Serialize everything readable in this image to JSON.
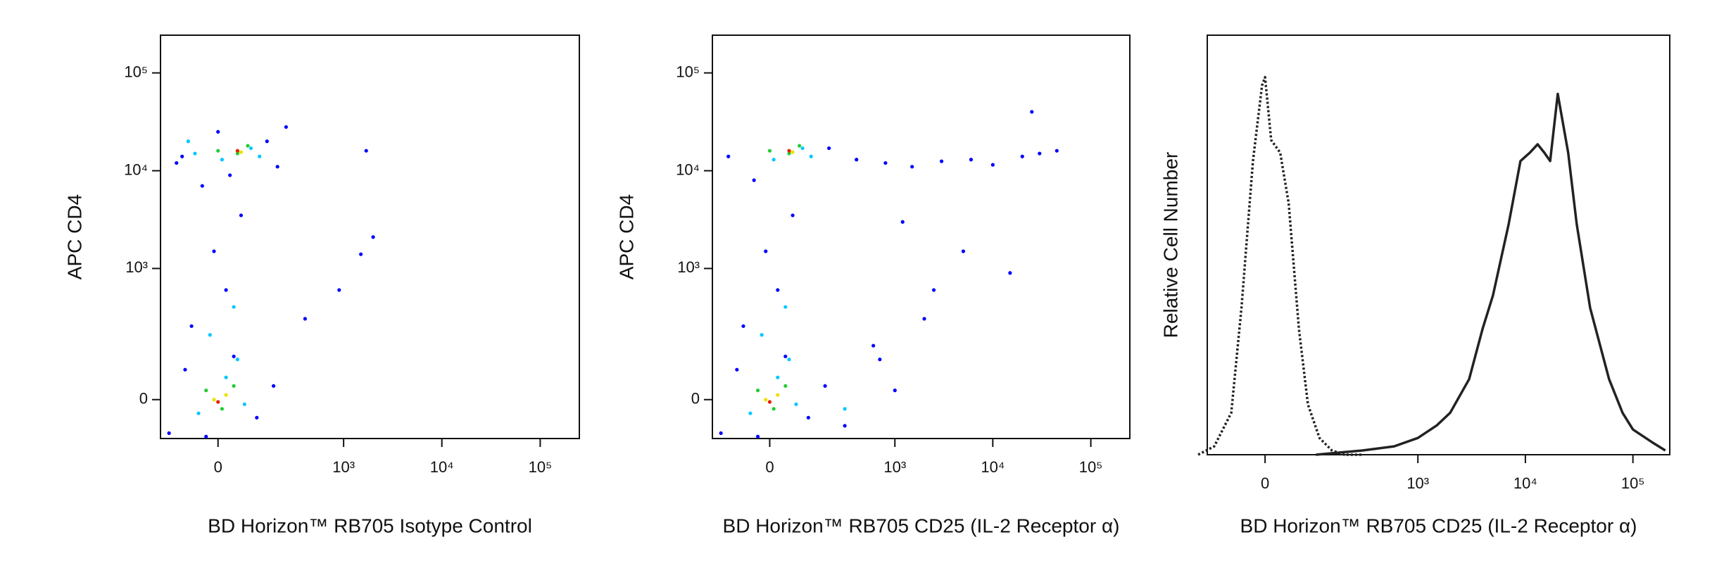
{
  "chart_data": [
    {
      "type": "scatter",
      "x_label": "BD Horizon™ RB705 Isotype Control",
      "y_label": "APC CD4",
      "scale": "biexponential",
      "xlim": [
        -190,
        250000
      ],
      "ylim": [
        -96,
        243000
      ],
      "xticks": [
        {
          "value": 0,
          "label": "0"
        },
        {
          "value": 1000,
          "label": "10³"
        },
        {
          "value": 10000,
          "label": "10⁴"
        },
        {
          "value": 100000,
          "label": "10⁵"
        }
      ],
      "yticks": [
        {
          "value": 0,
          "label": "0"
        },
        {
          "value": 1000,
          "label": "10³"
        },
        {
          "value": 10000,
          "label": "10⁴"
        },
        {
          "value": 100000,
          "label": "10⁵"
        }
      ],
      "series": [
        {
          "color": "#0000ff",
          "x": [
            -150,
            -90,
            -30,
            40,
            110,
            180,
            -70,
            20,
            -10,
            60,
            -40,
            30,
            0,
            -120,
            150,
            400,
            900,
            1500,
            2000,
            1700,
            -100,
            200,
            250
          ],
          "y": [
            -80,
            70,
            -90,
            110,
            -40,
            30,
            250,
            600,
            1500,
            3500,
            7000,
            9000,
            25000,
            12000,
            20000,
            300,
            600,
            1400,
            2100,
            16000,
            14000,
            11000,
            28000
          ]
        },
        {
          "color": "#00c8ff",
          "x": [
            -50,
            20,
            70,
            -20,
            40,
            -80,
            90,
            10,
            -60,
            120,
            50
          ],
          "y": [
            -30,
            50,
            -10,
            200,
            400,
            20000,
            17000,
            13000,
            15000,
            14000,
            100
          ]
        },
        {
          "color": "#22cc33",
          "x": [
            -30,
            10,
            40,
            0,
            50,
            80
          ],
          "y": [
            20,
            -20,
            30,
            16000,
            15000,
            18000
          ]
        },
        {
          "color": "#f0e000",
          "x": [
            -10,
            20,
            60
          ],
          "y": [
            0,
            10,
            15500
          ]
        },
        {
          "color": "#e02000",
          "x": [
            0,
            50
          ],
          "y": [
            -5,
            16000
          ]
        }
      ]
    },
    {
      "type": "scatter",
      "x_label": "BD Horizon™ RB705 CD25 (IL-2 Receptor α)",
      "y_label": "APC CD4",
      "scale": "biexponential",
      "xlim": [
        -190,
        250000
      ],
      "ylim": [
        -96,
        243000
      ],
      "xticks": [
        {
          "value": 0,
          "label": "0"
        },
        {
          "value": 1000,
          "label": "10³"
        },
        {
          "value": 10000,
          "label": "10⁴"
        },
        {
          "value": 100000,
          "label": "10⁵"
        }
      ],
      "yticks": [
        {
          "value": 0,
          "label": "0"
        },
        {
          "value": 1000,
          "label": "10³"
        },
        {
          "value": 10000,
          "label": "10⁴"
        },
        {
          "value": 100000,
          "label": "10⁵"
        }
      ],
      "series": [
        {
          "color": "#0000ff",
          "x": [
            -150,
            -90,
            -30,
            40,
            110,
            180,
            -70,
            20,
            -10,
            60,
            -40,
            400,
            800,
            1500,
            3000,
            6000,
            10000,
            20000,
            30000,
            45000,
            600,
            2000,
            5000,
            15000,
            25000,
            1000,
            2500,
            300,
            700,
            1200,
            -120,
            200
          ],
          "y": [
            -80,
            70,
            -90,
            110,
            -40,
            30,
            250,
            600,
            1500,
            3500,
            8000,
            13000,
            12000,
            11000,
            12500,
            13000,
            11500,
            14000,
            15000,
            16000,
            150,
            300,
            1500,
            900,
            40000,
            20,
            600,
            -60,
            100,
            3000,
            14000,
            17000
          ]
        },
        {
          "color": "#00c8ff",
          "x": [
            -50,
            20,
            70,
            -20,
            40,
            90,
            10,
            120,
            50,
            300
          ],
          "y": [
            -30,
            50,
            -10,
            200,
            400,
            17000,
            13000,
            14000,
            100,
            -20
          ]
        },
        {
          "color": "#22cc33",
          "x": [
            -30,
            10,
            40,
            0,
            50,
            80
          ],
          "y": [
            20,
            -20,
            30,
            16000,
            15000,
            18000
          ]
        },
        {
          "color": "#f0e000",
          "x": [
            -10,
            20,
            60
          ],
          "y": [
            0,
            10,
            15500
          ]
        },
        {
          "color": "#e02000",
          "x": [
            0,
            50
          ],
          "y": [
            -5,
            16000
          ]
        }
      ]
    },
    {
      "type": "histogram",
      "x_label": "BD Horizon™ RB705 CD25 (IL-2 Receptor α)",
      "y_label": "Relative Cell Number",
      "scale": "biexponential",
      "xlim": [
        -120,
        220000
      ],
      "ylim": [
        0,
        100
      ],
      "xticks": [
        {
          "value": 0,
          "label": "0"
        },
        {
          "value": 1000,
          "label": "10³"
        },
        {
          "value": 10000,
          "label": "10⁴"
        },
        {
          "value": 100000,
          "label": "10⁵"
        }
      ],
      "series": [
        {
          "color": "#222222",
          "dash": "dotted",
          "x": [
            -150,
            -100,
            -60,
            -40,
            -20,
            -5,
            0,
            10,
            25,
            40,
            60,
            80,
            110,
            150,
            200,
            300
          ],
          "y": [
            0,
            2,
            10,
            35,
            70,
            88,
            90,
            75,
            72,
            60,
            30,
            12,
            4,
            1,
            0,
            0
          ]
        },
        {
          "color": "#222222",
          "dash": "solid",
          "x": [
            100,
            300,
            600,
            1000,
            1500,
            2000,
            3000,
            4000,
            5000,
            7000,
            9000,
            11000,
            13000,
            15000,
            17000,
            20000,
            25000,
            30000,
            40000,
            60000,
            80000,
            100000,
            150000,
            200000
          ],
          "y": [
            0,
            1,
            2,
            4,
            7,
            10,
            18,
            30,
            38,
            55,
            70,
            72,
            74,
            72,
            70,
            86,
            72,
            55,
            35,
            18,
            10,
            6,
            3,
            1
          ]
        }
      ]
    }
  ]
}
